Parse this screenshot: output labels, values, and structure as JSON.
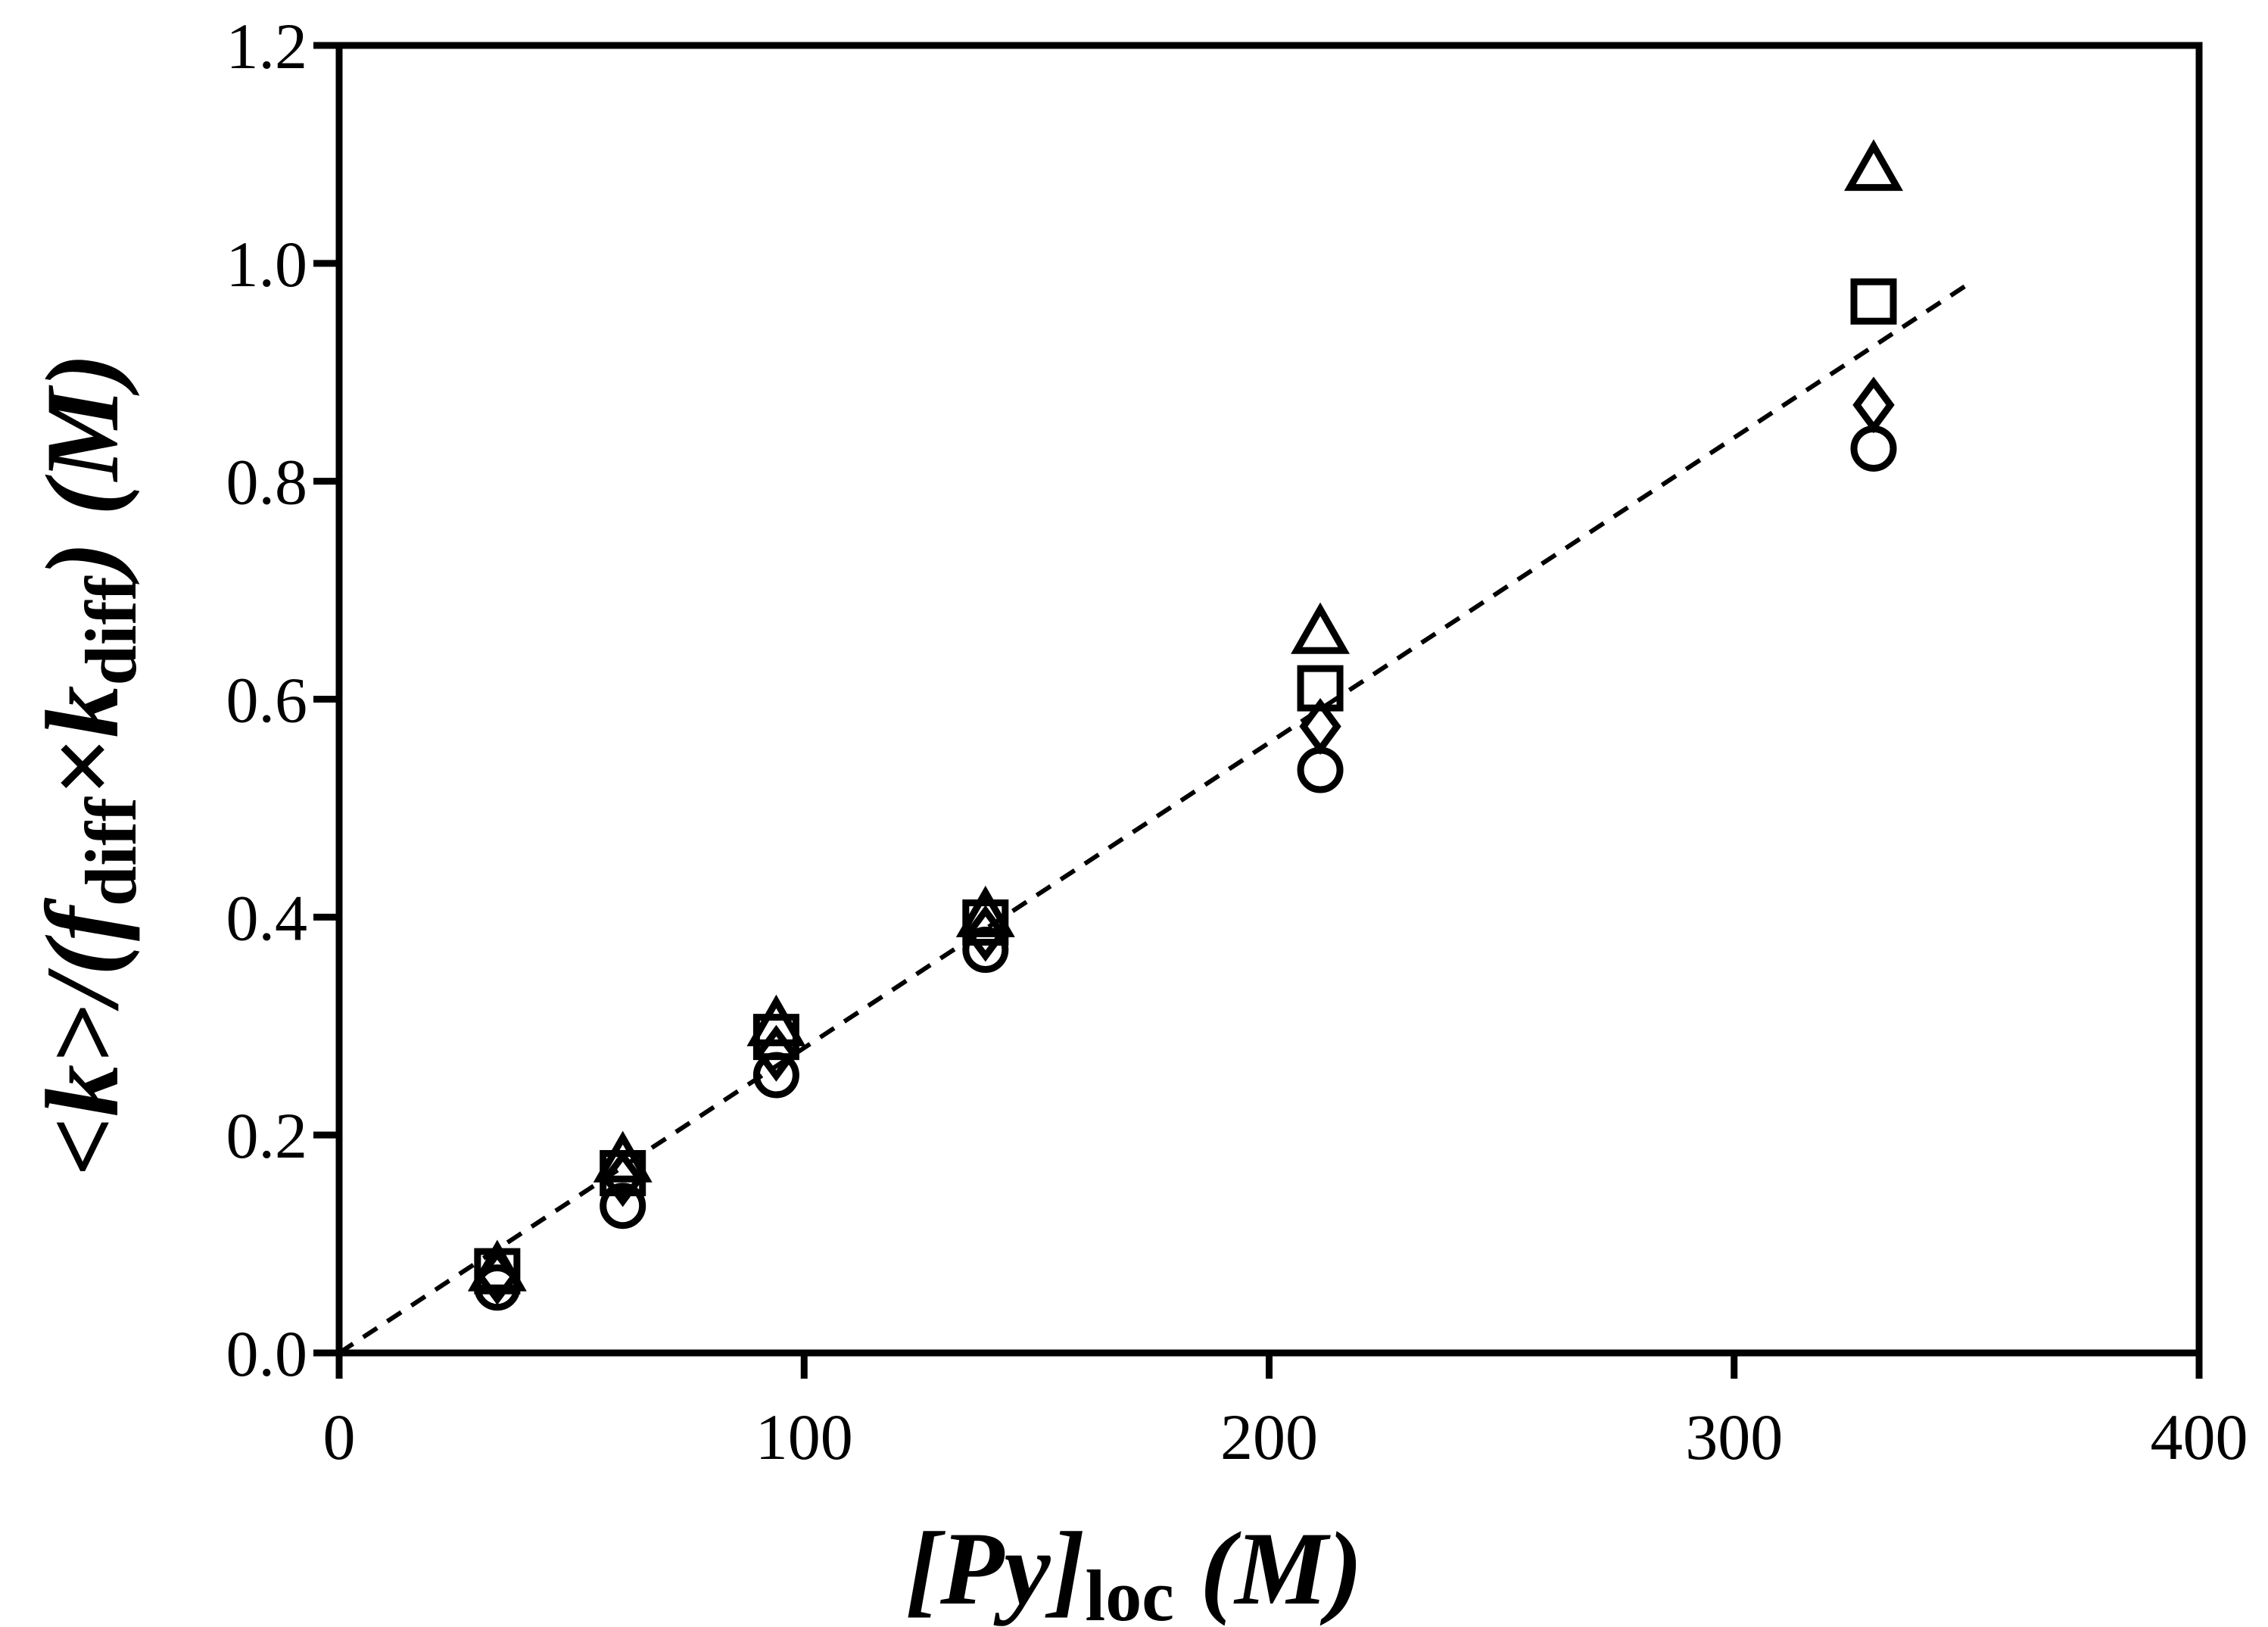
{
  "chart_data": {
    "type": "scatter",
    "title": "",
    "xlabel": {
      "main": "[Py]",
      "sub": "loc",
      "unit": " (M)"
    },
    "ylabel": {
      "prefix": "<k>/(f",
      "sub1": "diff",
      "times": "×k",
      "sub2": "diff",
      "suffix": ") (M)"
    },
    "xlim": [
      0,
      400
    ],
    "ylim": [
      0,
      1.2
    ],
    "x_ticks": [
      "0",
      "100",
      "200",
      "300",
      "400"
    ],
    "y_ticks": [
      "0.0",
      "0.2",
      "0.4",
      "0.6",
      "0.8",
      "1.0",
      "1.2"
    ],
    "grid": false,
    "legend": "none",
    "x": [
      34,
      61,
      94,
      139,
      211,
      330
    ],
    "series": [
      {
        "name": "triangle",
        "marker": "triangle",
        "values": [
          0.075,
          0.175,
          0.3,
          0.4,
          0.66,
          1.085
        ]
      },
      {
        "name": "square",
        "marker": "square",
        "values": [
          0.075,
          0.165,
          0.29,
          0.395,
          0.61,
          0.965
        ]
      },
      {
        "name": "diamond",
        "marker": "diamond",
        "values": [
          0.07,
          0.16,
          0.275,
          0.385,
          0.575,
          0.87
        ]
      },
      {
        "name": "circle",
        "marker": "circle",
        "values": [
          0.06,
          0.135,
          0.255,
          0.37,
          0.535,
          0.83
        ]
      }
    ],
    "fit_line": {
      "name": "linear-fit",
      "style": "dashed",
      "x": [
        0,
        350
      ],
      "y": [
        0,
        0.98
      ]
    }
  }
}
